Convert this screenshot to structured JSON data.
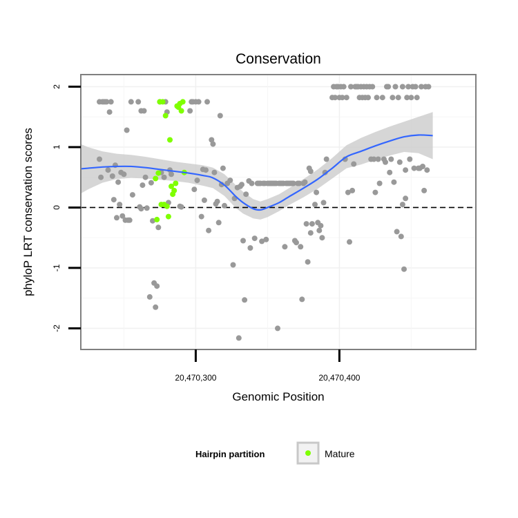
{
  "chart_data": {
    "type": "scatter",
    "title": "Conservation",
    "xlabel": "Genomic Position",
    "ylabel": "phyloP LRT conservation scores",
    "xlim": [
      20470220,
      20470495
    ],
    "ylim": [
      -2.35,
      2.2
    ],
    "x_ticks": [
      {
        "value": 20470300,
        "label": "20,470,300"
      },
      {
        "value": 20470400,
        "label": "20,470,400"
      }
    ],
    "y_ticks": [
      {
        "value": -2,
        "label": "-2"
      },
      {
        "value": -1,
        "label": "-1"
      },
      {
        "value": 0,
        "label": "0"
      },
      {
        "value": 1,
        "label": "1"
      },
      {
        "value": 2,
        "label": "2"
      }
    ],
    "reference_line": {
      "y": 0,
      "style": "dashed"
    },
    "legend": {
      "title": "Hairpin partition",
      "position": "bottom",
      "items": [
        {
          "label": "Mature",
          "color": "#7fff00"
        }
      ]
    },
    "grid": true,
    "colors": {
      "points": "#999999",
      "highlight": "#7fff00",
      "smooth_line": "#3366ff",
      "ribbon": "#cccccc",
      "panel_border": "#7f7f7f"
    },
    "series": [
      {
        "name": "",
        "color": "#999999",
        "points": [
          [
            20470233,
            0.8
          ],
          [
            20470233,
            1.75
          ],
          [
            20470234,
            0.5
          ],
          [
            20470235,
            1.75
          ],
          [
            20470236,
            1.75
          ],
          [
            20470237,
            1.75
          ],
          [
            20470238,
            1.75
          ],
          [
            20470239,
            0.62
          ],
          [
            20470240,
            1.58
          ],
          [
            20470241,
            1.75
          ],
          [
            20470242,
            0.52
          ],
          [
            20470243,
            0.13
          ],
          [
            20470244,
            0.7
          ],
          [
            20470245,
            -0.17
          ],
          [
            20470246,
            0.42
          ],
          [
            20470247,
            0.05
          ],
          [
            20470248,
            0.58
          ],
          [
            20470249,
            -0.14
          ],
          [
            20470250,
            0.55
          ],
          [
            20470251,
            -0.21
          ],
          [
            20470252,
            1.28
          ],
          [
            20470253,
            -0.21
          ],
          [
            20470254,
            -0.21
          ],
          [
            20470255,
            1.75
          ],
          [
            20470256,
            0.21
          ],
          [
            20470260,
            1.75
          ],
          [
            20470261,
            0.01
          ],
          [
            20470262,
            1.6
          ],
          [
            20470262,
            -0.02
          ],
          [
            20470263,
            0.37
          ],
          [
            20470264,
            1.6
          ],
          [
            20470265,
            0.5
          ],
          [
            20470266,
            -0.01
          ],
          [
            20470268,
            -1.48
          ],
          [
            20470269,
            0.41
          ],
          [
            20470270,
            -0.22
          ],
          [
            20470271,
            -1.25
          ],
          [
            20470272,
            -1.65
          ],
          [
            20470273,
            -1.3
          ],
          [
            20470274,
            -0.33
          ],
          [
            20470275,
            1.75
          ],
          [
            20470276,
            0.58
          ],
          [
            20470278,
            0.5
          ],
          [
            20470279,
            1.75
          ],
          [
            20470280,
            1.58
          ],
          [
            20470281,
            0.08
          ],
          [
            20470282,
            0.62
          ],
          [
            20470283,
            0.55
          ],
          [
            20470289,
            0.02
          ],
          [
            20470290,
            0.01
          ],
          [
            20470296,
            1.6
          ],
          [
            20470297,
            1.75
          ],
          [
            20470298,
            1.75
          ],
          [
            20470299,
            0.3
          ],
          [
            20470300,
            1.75
          ],
          [
            20470301,
            0.45
          ],
          [
            20470302,
            1.75
          ],
          [
            20470304,
            -0.15
          ],
          [
            20470305,
            0.63
          ],
          [
            20470306,
            0.12
          ],
          [
            20470307,
            0.62
          ],
          [
            20470308,
            1.75
          ],
          [
            20470309,
            -0.38
          ],
          [
            20470311,
            1.12
          ],
          [
            20470312,
            1.05
          ],
          [
            20470313,
            0.58
          ],
          [
            20470314,
            0.06
          ],
          [
            20470315,
            0.1
          ],
          [
            20470316,
            -0.25
          ],
          [
            20470317,
            1.52
          ],
          [
            20470318,
            0.38
          ],
          [
            20470319,
            0.65
          ],
          [
            20470320,
            0.03
          ],
          [
            20470322,
            0.4
          ],
          [
            20470324,
            0.45
          ],
          [
            20470326,
            -0.95
          ],
          [
            20470327,
            0.15
          ],
          [
            20470329,
            0.33
          ],
          [
            20470330,
            -2.16
          ],
          [
            20470331,
            0.35
          ],
          [
            20470332,
            0.38
          ],
          [
            20470333,
            -0.55
          ],
          [
            20470334,
            -1.53
          ],
          [
            20470335,
            0.22
          ],
          [
            20470337,
            0.44
          ],
          [
            20470338,
            -0.67
          ],
          [
            20470339,
            0.4
          ],
          [
            20470341,
            -0.51
          ],
          [
            20470343,
            0.4
          ],
          [
            20470344,
            0.4
          ],
          [
            20470345,
            0.4
          ],
          [
            20470346,
            -0.56
          ],
          [
            20470347,
            0.4
          ],
          [
            20470348,
            0.4
          ],
          [
            20470349,
            -0.53
          ],
          [
            20470350,
            0.4
          ],
          [
            20470351,
            0.4
          ],
          [
            20470352,
            0.4
          ],
          [
            20470353,
            0.4
          ],
          [
            20470354,
            0.4
          ],
          [
            20470355,
            0.4
          ],
          [
            20470356,
            0.4
          ],
          [
            20470357,
            -2.0
          ],
          [
            20470358,
            0.4
          ],
          [
            20470359,
            0.4
          ],
          [
            20470360,
            0.4
          ],
          [
            20470361,
            0.4
          ],
          [
            20470362,
            -0.65
          ],
          [
            20470363,
            0.4
          ],
          [
            20470364,
            0.4
          ],
          [
            20470365,
            0.4
          ],
          [
            20470366,
            0.4
          ],
          [
            20470367,
            0.4
          ],
          [
            20470368,
            0.4
          ],
          [
            20470369,
            -0.55
          ],
          [
            20470370,
            -0.58
          ],
          [
            20470371,
            0.4
          ],
          [
            20470372,
            0.4
          ],
          [
            20470373,
            -0.65
          ],
          [
            20470374,
            -1.52
          ],
          [
            20470375,
            0.4
          ],
          [
            20470376,
            0.42
          ],
          [
            20470377,
            -0.27
          ],
          [
            20470378,
            -0.9
          ],
          [
            20470379,
            0.65
          ],
          [
            20470380,
            0.6
          ],
          [
            20470380,
            -0.42
          ],
          [
            20470381,
            -0.27
          ],
          [
            20470383,
            0.05
          ],
          [
            20470384,
            0.25
          ],
          [
            20470385,
            -0.25
          ],
          [
            20470386,
            -0.38
          ],
          [
            20470387,
            -0.3
          ],
          [
            20470388,
            -0.5
          ],
          [
            20470389,
            0.08
          ],
          [
            20470390,
            0.58
          ],
          [
            20470391,
            0.8
          ],
          [
            20470395,
            1.82
          ],
          [
            20470396,
            2.0
          ],
          [
            20470397,
            1.82
          ],
          [
            20470398,
            2.0
          ],
          [
            20470399,
            2.0
          ],
          [
            20470400,
            1.82
          ],
          [
            20470401,
            2.0
          ],
          [
            20470402,
            1.82
          ],
          [
            20470403,
            2.0
          ],
          [
            20470404,
            0.8
          ],
          [
            20470405,
            1.82
          ],
          [
            20470406,
            0.25
          ],
          [
            20470407,
            -0.57
          ],
          [
            20470408,
            2.0
          ],
          [
            20470409,
            0.28
          ],
          [
            20470410,
            0.72
          ],
          [
            20470411,
            2.0
          ],
          [
            20470412,
            2.0
          ],
          [
            20470413,
            2.0
          ],
          [
            20470414,
            1.82
          ],
          [
            20470415,
            2.0
          ],
          [
            20470416,
            1.82
          ],
          [
            20470417,
            2.0
          ],
          [
            20470418,
            1.82
          ],
          [
            20470419,
            2.0
          ],
          [
            20470420,
            1.82
          ],
          [
            20470421,
            2.0
          ],
          [
            20470422,
            0.8
          ],
          [
            20470423,
            2.0
          ],
          [
            20470424,
            0.8
          ],
          [
            20470425,
            0.25
          ],
          [
            20470426,
            1.82
          ],
          [
            20470427,
            0.8
          ],
          [
            20470428,
            0.4
          ],
          [
            20470430,
            1.82
          ],
          [
            20470431,
            0.8
          ],
          [
            20470432,
            0.75
          ],
          [
            20470433,
            2.0
          ],
          [
            20470434,
            2.0
          ],
          [
            20470435,
            0.58
          ],
          [
            20470436,
            0.8
          ],
          [
            20470437,
            1.82
          ],
          [
            20470438,
            0.42
          ],
          [
            20470439,
            2.0
          ],
          [
            20470440,
            -0.4
          ],
          [
            20470441,
            1.82
          ],
          [
            20470442,
            0.75
          ],
          [
            20470443,
            -0.48
          ],
          [
            20470444,
            2.0
          ],
          [
            20470444,
            0.05
          ],
          [
            20470445,
            -1.02
          ],
          [
            20470446,
            0.15
          ],
          [
            20470446,
            0.62
          ],
          [
            20470447,
            1.82
          ],
          [
            20470448,
            2.0
          ],
          [
            20470449,
            0.8
          ],
          [
            20470450,
            1.82
          ],
          [
            20470451,
            2.0
          ],
          [
            20470452,
            0.65
          ],
          [
            20470453,
            2.0
          ],
          [
            20470454,
            1.82
          ],
          [
            20470455,
            0.65
          ],
          [
            20470456,
            0.65
          ],
          [
            20470457,
            2.0
          ],
          [
            20470458,
            0.68
          ],
          [
            20470459,
            0.28
          ],
          [
            20470460,
            2.0
          ],
          [
            20470461,
            0.62
          ],
          [
            20470462,
            2.0
          ]
        ]
      },
      {
        "name": "Mature",
        "color": "#7fff00",
        "points": [
          [
            20470272,
            0.48
          ],
          [
            20470273,
            -0.2
          ],
          [
            20470274,
            0.57
          ],
          [
            20470275,
            1.75
          ],
          [
            20470276,
            0.05
          ],
          [
            20470277,
            1.75
          ],
          [
            20470278,
            0.05
          ],
          [
            20470279,
            1.52
          ],
          [
            20470280,
            0.02
          ],
          [
            20470281,
            -0.15
          ],
          [
            20470282,
            1.12
          ],
          [
            20470283,
            0.35
          ],
          [
            20470284,
            0.22
          ],
          [
            20470285,
            0.28
          ],
          [
            20470286,
            0.4
          ],
          [
            20470287,
            1.68
          ],
          [
            20470288,
            1.66
          ],
          [
            20470289,
            1.72
          ],
          [
            20470290,
            1.6
          ],
          [
            20470291,
            1.75
          ],
          [
            20470292,
            0.58
          ]
        ]
      }
    ],
    "smooth_fit": {
      "name": "",
      "x": [
        20470220,
        20470225,
        20470235,
        20470245,
        20470255,
        20470265,
        20470275,
        20470285,
        20470295,
        20470305,
        20470312,
        20470320,
        20470328,
        20470333,
        20470340,
        20470345,
        20470350,
        20470358,
        20470365,
        20470375,
        20470385,
        20470395,
        20470405,
        20470415,
        20470425,
        20470435,
        20470445,
        20470455,
        20470465
      ],
      "y": [
        0.64,
        0.65,
        0.67,
        0.68,
        0.68,
        0.66,
        0.63,
        0.6,
        0.57,
        0.53,
        0.49,
        0.37,
        0.18,
        0.08,
        -0.02,
        -0.04,
        0.0,
        0.08,
        0.18,
        0.32,
        0.47,
        0.65,
        0.84,
        0.93,
        1.02,
        1.1,
        1.17,
        1.2,
        1.19
      ],
      "ci_upper": [
        1.05,
        1.0,
        0.93,
        0.89,
        0.87,
        0.84,
        0.8,
        0.76,
        0.73,
        0.7,
        0.66,
        0.55,
        0.37,
        0.26,
        0.14,
        0.1,
        0.14,
        0.22,
        0.32,
        0.47,
        0.63,
        0.82,
        1.03,
        1.15,
        1.25,
        1.34,
        1.42,
        1.5,
        1.58
      ],
      "ci_lower": [
        0.23,
        0.3,
        0.41,
        0.47,
        0.49,
        0.48,
        0.46,
        0.44,
        0.41,
        0.36,
        0.32,
        0.19,
        -0.01,
        -0.1,
        -0.18,
        -0.2,
        -0.16,
        -0.06,
        0.04,
        0.17,
        0.31,
        0.48,
        0.65,
        0.71,
        0.79,
        0.86,
        0.92,
        0.9,
        0.8
      ]
    }
  }
}
